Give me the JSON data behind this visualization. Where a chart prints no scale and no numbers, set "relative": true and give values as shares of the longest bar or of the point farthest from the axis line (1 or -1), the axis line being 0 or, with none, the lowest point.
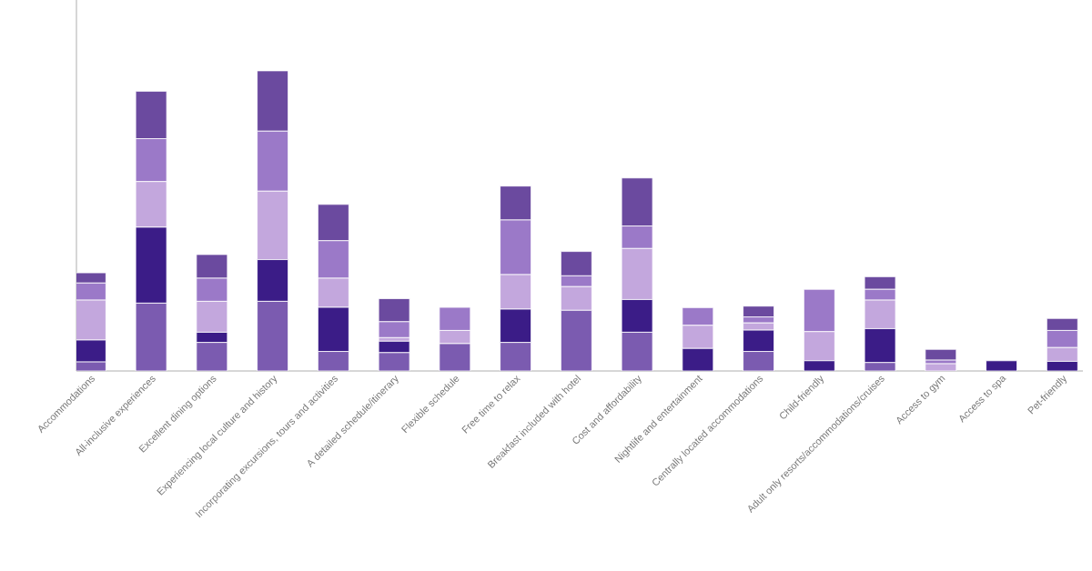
{
  "chart_data": {
    "type": "bar",
    "stacked": true,
    "relative": true,
    "categories": [
      "Accommodations",
      "All-inclusive experiences",
      "Excellent dining options",
      "Experiencing local culture and history",
      "Incorporating excursions, tours and activities",
      "A detailed schedule/itinerary",
      "Flexible schedule",
      "Free time to relax",
      "Breakfast included with hotel",
      "Cost and affordability",
      "Nightlife and entertainment",
      "Centrally located accommodations",
      "Child-friendly",
      "Adult only resorts/accommodations/cruises",
      "Access to gym",
      "Access to spa",
      "Pet-friendly"
    ],
    "series": [
      {
        "color": "#7b5bb0",
        "values": [
          0.03,
          0.226,
          0.095,
          0.232,
          0.065,
          0.061,
          0.091,
          0.095,
          0.202,
          0.129,
          0,
          0.065,
          0,
          0.028,
          0,
          0,
          0
        ]
      },
      {
        "color": "#3b1c87",
        "values": [
          0.073,
          0.253,
          0.034,
          0.139,
          0.147,
          0.038,
          0,
          0.111,
          0,
          0.109,
          0.075,
          0.071,
          0.034,
          0.113,
          0,
          0.034,
          0.032
        ]
      },
      {
        "color": "#c3a7dd",
        "values": [
          0.133,
          0.152,
          0.103,
          0.228,
          0.097,
          0.012,
          0.044,
          0.115,
          0.079,
          0.17,
          0.077,
          0.024,
          0.097,
          0.095,
          0.024,
          0,
          0.046
        ]
      },
      {
        "color": "#9b79c8",
        "values": [
          0.057,
          0.143,
          0.077,
          0.2,
          0.125,
          0.053,
          0.077,
          0.182,
          0.036,
          0.075,
          0.059,
          0.02,
          0.141,
          0.036,
          0.012,
          0,
          0.057
        ]
      },
      {
        "color": "#6b4a9f",
        "values": [
          0.034,
          0.158,
          0.079,
          0.201,
          0.121,
          0.077,
          0,
          0.113,
          0.081,
          0.16,
          0,
          0.036,
          0,
          0.042,
          0.036,
          0,
          0.04
        ]
      }
    ]
  }
}
